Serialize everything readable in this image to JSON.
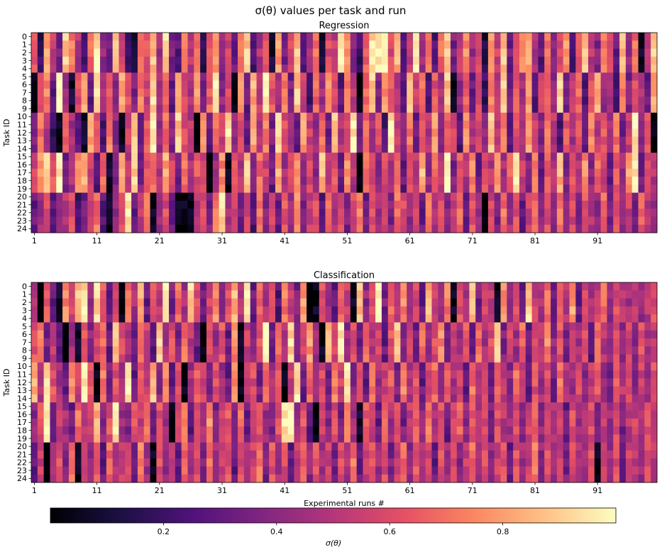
{
  "figure_title": "σ(θ) values per task and run",
  "chart_data": [
    {
      "type": "heatmap",
      "title": "Regression",
      "ylabel": "Task ID",
      "xlabel": "",
      "rows": 25,
      "cols": 100,
      "y_ticks": [
        "0",
        "1",
        "2",
        "3",
        "4",
        "5",
        "6",
        "7",
        "8",
        "9",
        "10",
        "11",
        "12",
        "13",
        "14",
        "15",
        "16",
        "17",
        "18",
        "19",
        "20",
        "21",
        "22",
        "23",
        "24"
      ],
      "x_ticks": [
        "1",
        "11",
        "21",
        "31",
        "41",
        "51",
        "61",
        "71",
        "81",
        "91"
      ],
      "groups": [
        [
          0,
          4
        ],
        [
          5,
          9
        ],
        [
          10,
          14
        ],
        [
          15,
          19
        ],
        [
          20,
          24
        ]
      ],
      "group_run_levels": [
        [
          0.62,
          0.18,
          0.8,
          0.55,
          0.35,
          0.9,
          0.72,
          0.48,
          0.25,
          0.66,
          0.95,
          0.4,
          0.3,
          0.85,
          0.58,
          0.2,
          0.05,
          0.7,
          0.62,
          0.88,
          0.45,
          0.92,
          0.33,
          0.27,
          0.75,
          0.5,
          0.68,
          0.15,
          0.6,
          0.82,
          0.38,
          0.55,
          0.3,
          0.72,
          0.9,
          0.22,
          0.48,
          0.64,
          0.08,
          0.77,
          0.35,
          0.58,
          0.86,
          0.28,
          0.46,
          0.7,
          0.12,
          0.6,
          0.53,
          0.97,
          0.74,
          0.4,
          0.2,
          0.66,
          0.94,
          0.98,
          0.99,
          0.6,
          0.85,
          0.3,
          0.55,
          0.92,
          0.45,
          0.7,
          0.25,
          0.68,
          0.9,
          0.35,
          0.52,
          0.75,
          0.42,
          0.62,
          0.1,
          0.78,
          0.55,
          0.88,
          0.32,
          0.6,
          0.72,
          0.83,
          0.48,
          0.28,
          0.67,
          0.4,
          0.57,
          0.8,
          0.22,
          0.65,
          0.9,
          0.5,
          0.38,
          0.74,
          0.6,
          0.3,
          0.85,
          0.45,
          0.7,
          0.04,
          0.55,
          0.92
        ],
        [
          0.02,
          0.6,
          0.75,
          0.3,
          0.95,
          0.45,
          0.08,
          0.6,
          0.82,
          0.3,
          0.9,
          0.52,
          0.68,
          0.4,
          0.85,
          0.6,
          0.35,
          0.72,
          0.55,
          0.92,
          0.44,
          0.7,
          0.3,
          0.88,
          0.6,
          0.48,
          0.78,
          0.35,
          0.66,
          0.95,
          0.4,
          0.58,
          0.02,
          0.75,
          0.3,
          0.82,
          0.5,
          0.98,
          0.62,
          0.45,
          0.7,
          0.33,
          0.88,
          0.55,
          0.2,
          0.68,
          0.42,
          0.8,
          0.58,
          0.25,
          0.72,
          0.5,
          0.01,
          0.65,
          0.9,
          0.35,
          0.78,
          0.6,
          0.48,
          0.3,
          0.84,
          0.55,
          0.7,
          0.25,
          0.62,
          0.45,
          0.88,
          0.05,
          0.4,
          0.66,
          0.3,
          0.58,
          0.2,
          0.75,
          0.5,
          0.92,
          0.35,
          0.62,
          0.45,
          0.8,
          0.28,
          0.55,
          0.7,
          0.4,
          0.95,
          0.3,
          0.52,
          0.68,
          0.25,
          0.6,
          0.85,
          0.4,
          0.5,
          0.2,
          0.72,
          0.35,
          0.6,
          0.45,
          0.3,
          0.8
        ],
        [
          0.35,
          0.7,
          0.5,
          0.2,
          0.02,
          0.62,
          0.45,
          0.3,
          0.05,
          0.8,
          0.6,
          0.25,
          0.72,
          0.4,
          0.03,
          0.55,
          0.85,
          0.3,
          0.62,
          0.98,
          0.45,
          0.7,
          0.35,
          0.88,
          0.6,
          0.5,
          0.02,
          0.75,
          0.3,
          0.68,
          0.55,
          0.95,
          0.42,
          0.62,
          0.3,
          0.82,
          0.5,
          0.72,
          0.35,
          0.9,
          0.6,
          0.45,
          0.25,
          0.78,
          0.55,
          0.4,
          0.68,
          0.3,
          0.85,
          0.5,
          0.62,
          0.96,
          0.35,
          0.7,
          0.45,
          0.6,
          0.25,
          0.92,
          0.55,
          0.4,
          0.72,
          0.3,
          0.62,
          0.48,
          0.8,
          0.35,
          0.68,
          0.55,
          0.25,
          0.75,
          0.45,
          0.6,
          0.38,
          0.88,
          0.5,
          0.7,
          0.3,
          0.62,
          0.45,
          0.8,
          0.55,
          0.35,
          0.7,
          0.5,
          0.25,
          0.65,
          0.45,
          0.6,
          0.3,
          0.75,
          0.5,
          0.62,
          0.42,
          0.7,
          0.35,
          0.55,
          0.95,
          0.4,
          0.6,
          0.03
        ],
        [
          0.55,
          0.75,
          0.95,
          0.62,
          0.98,
          0.3,
          0.45,
          0.72,
          0.85,
          0.55,
          0.25,
          0.68,
          0.1,
          0.4,
          0.78,
          0.5,
          0.92,
          0.35,
          0.62,
          0.72,
          0.48,
          0.82,
          0.58,
          0.3,
          0.7,
          0.45,
          0.62,
          0.55,
          0.02,
          0.4,
          0.75,
          0.05,
          0.62,
          0.48,
          0.88,
          0.35,
          0.68,
          0.55,
          0.3,
          0.82,
          0.45,
          0.62,
          0.72,
          0.4,
          0.58,
          0.35,
          0.85,
          0.5,
          0.62,
          0.3,
          0.75,
          0.48,
          0.02,
          0.68,
          0.55,
          0.35,
          0.6,
          0.45,
          0.72,
          0.3,
          0.62,
          0.5,
          0.85,
          0.4,
          0.68,
          0.55,
          0.98,
          0.35,
          0.62,
          0.48,
          0.75,
          0.3,
          0.6,
          0.5,
          0.82,
          0.45,
          0.68,
          0.95,
          0.55,
          0.4,
          0.7,
          0.3,
          0.62,
          0.48,
          0.85,
          0.35,
          0.6,
          0.5,
          0.75,
          0.4,
          0.68,
          0.55,
          0.3,
          0.62,
          0.45,
          0.8,
          0.98,
          0.35,
          0.6,
          0.5
        ],
        [
          0.3,
          0.45,
          0.6,
          0.25,
          0.38,
          0.5,
          0.62,
          0.2,
          0.35,
          0.55,
          0.7,
          0.28,
          0.05,
          0.42,
          0.6,
          0.95,
          0.3,
          0.5,
          0.68,
          0.02,
          0.45,
          0.6,
          0.3,
          0.04,
          0.02,
          0.01,
          0.5,
          0.62,
          0.35,
          0.72,
          0.92,
          0.45,
          0.6,
          0.3,
          0.55,
          0.25,
          0.68,
          0.4,
          0.58,
          0.3,
          0.62,
          0.45,
          0.75,
          0.35,
          0.55,
          0.6,
          0.28,
          0.7,
          0.45,
          0.62,
          0.35,
          0.58,
          0.75,
          0.3,
          0.62,
          0.45,
          0.55,
          0.35,
          0.68,
          0.6,
          0.4,
          0.58,
          0.3,
          0.72,
          0.45,
          0.6,
          0.35,
          0.55,
          0.68,
          0.3,
          0.62,
          0.45,
          0.02,
          0.58,
          0.35,
          0.7,
          0.45,
          0.6,
          0.3,
          0.55,
          0.68,
          0.4,
          0.6,
          0.35,
          0.72,
          0.45,
          0.58,
          0.3,
          0.62,
          0.5,
          0.4,
          0.68,
          0.35,
          0.6,
          0.45,
          0.55,
          0.3,
          0.65,
          0.5,
          0.4
        ]
      ]
    },
    {
      "type": "heatmap",
      "title": "Classification",
      "ylabel": "Task ID",
      "xlabel": "Experimental runs #",
      "rows": 25,
      "cols": 100,
      "y_ticks": [
        "0",
        "1",
        "2",
        "3",
        "4",
        "5",
        "6",
        "7",
        "8",
        "9",
        "10",
        "11",
        "12",
        "13",
        "14",
        "15",
        "16",
        "17",
        "18",
        "19",
        "20",
        "21",
        "22",
        "23",
        "24"
      ],
      "x_ticks": [
        "1",
        "11",
        "21",
        "31",
        "41",
        "51",
        "61",
        "71",
        "81",
        "91"
      ],
      "groups": [
        [
          0,
          4
        ],
        [
          5,
          9
        ],
        [
          10,
          14
        ],
        [
          15,
          19
        ],
        [
          20,
          24
        ]
      ],
      "group_run_levels": [
        [
          0.45,
          0.02,
          0.62,
          0.3,
          0.05,
          0.75,
          0.55,
          0.88,
          0.95,
          0.4,
          0.92,
          0.62,
          0.3,
          0.55,
          0.02,
          0.68,
          0.45,
          0.82,
          0.3,
          0.6,
          0.5,
          0.98,
          0.35,
          0.7,
          0.45,
          0.92,
          0.6,
          0.3,
          0.55,
          0.75,
          0.4,
          0.62,
          0.85,
          0.5,
          0.92,
          0.3,
          0.68,
          0.45,
          0.6,
          0.25,
          0.72,
          0.55,
          0.35,
          0.8,
          0.02,
          0.05,
          0.62,
          0.45,
          0.3,
          0.7,
          0.55,
          0.03,
          0.85,
          0.4,
          0.62,
          0.98,
          0.35,
          0.68,
          0.5,
          0.75,
          0.45,
          0.6,
          0.3,
          0.85,
          0.55,
          0.4,
          0.72,
          0.05,
          0.62,
          0.45,
          0.88,
          0.35,
          0.6,
          0.5,
          0.02,
          0.75,
          0.4,
          0.62,
          0.3,
          0.9,
          0.55,
          0.45,
          0.7,
          0.35,
          0.62,
          0.5,
          0.8,
          0.3,
          0.6,
          0.45,
          0.55,
          0.68,
          0.4,
          0.6,
          0.5,
          0.45,
          0.55,
          0.4,
          0.5,
          0.6
        ],
        [
          0.62,
          0.75,
          0.35,
          0.55,
          0.3,
          0.02,
          0.45,
          0.05,
          0.62,
          0.4,
          0.55,
          0.7,
          0.3,
          0.85,
          0.62,
          0.45,
          0.35,
          0.72,
          0.55,
          0.3,
          0.9,
          0.45,
          0.62,
          0.35,
          0.7,
          0.5,
          0.3,
          0.02,
          0.58,
          0.45,
          0.62,
          0.3,
          0.75,
          0.03,
          0.55,
          0.4,
          0.62,
          0.98,
          0.35,
          0.7,
          0.45,
          0.92,
          0.3,
          0.55,
          0.78,
          0.45,
          0.02,
          0.85,
          0.6,
          0.95,
          0.4,
          0.62,
          0.35,
          0.7,
          0.45,
          0.55,
          0.3,
          0.62,
          0.85,
          0.4,
          0.55,
          0.3,
          0.68,
          0.45,
          0.6,
          0.75,
          0.35,
          0.55,
          0.45,
          0.62,
          0.3,
          0.7,
          0.45,
          0.6,
          0.92,
          0.35,
          0.55,
          0.45,
          0.68,
          0.3,
          0.6,
          0.5,
          0.75,
          0.4,
          0.62,
          0.35,
          0.55,
          0.45,
          0.6,
          0.3,
          0.7,
          0.5,
          0.45,
          0.62,
          0.4,
          0.55,
          0.35,
          0.6,
          0.45,
          0.5
        ],
        [
          0.85,
          0.5,
          0.92,
          0.62,
          0.45,
          0.3,
          0.75,
          0.55,
          0.95,
          0.6,
          0.02,
          0.7,
          0.35,
          0.62,
          0.45,
          0.98,
          0.3,
          0.6,
          0.55,
          0.85,
          0.4,
          0.72,
          0.3,
          0.6,
          0.02,
          0.45,
          0.68,
          0.55,
          0.35,
          0.62,
          0.45,
          0.3,
          0.75,
          0.02,
          0.55,
          0.6,
          0.35,
          0.7,
          0.45,
          0.62,
          0.03,
          0.55,
          0.95,
          0.3,
          0.68,
          0.45,
          0.6,
          0.35,
          0.72,
          0.55,
          0.98,
          0.4,
          0.62,
          0.3,
          0.7,
          0.45,
          0.55,
          0.62,
          0.35,
          0.75,
          0.45,
          0.6,
          0.3,
          0.55,
          0.68,
          0.4,
          0.62,
          0.45,
          0.55,
          0.3,
          0.7,
          0.45,
          0.6,
          0.35,
          0.62,
          0.5,
          0.4,
          0.68,
          0.55,
          0.3,
          0.62,
          0.45,
          0.6,
          0.35,
          0.7,
          0.5,
          0.45,
          0.6,
          0.4,
          0.55,
          0.62,
          0.45,
          0.3,
          0.68,
          0.5,
          0.6,
          0.4,
          0.55,
          0.45,
          0.6
        ],
        [
          0.4,
          0.62,
          0.98,
          0.35,
          0.55,
          0.45,
          0.3,
          0.7,
          0.5,
          0.6,
          0.85,
          0.4,
          0.62,
          0.95,
          0.45,
          0.35,
          0.6,
          0.55,
          0.72,
          0.3,
          0.62,
          0.45,
          0.02,
          0.55,
          0.68,
          0.3,
          0.6,
          0.45,
          0.75,
          0.35,
          0.55,
          0.62,
          0.4,
          0.7,
          0.3,
          0.55,
          0.62,
          0.45,
          0.35,
          0.6,
          0.95,
          0.98,
          0.45,
          0.62,
          0.3,
          0.02,
          0.55,
          0.4,
          0.6,
          0.35,
          0.7,
          0.45,
          0.05,
          0.62,
          0.55,
          0.3,
          0.68,
          0.45,
          0.6,
          0.35,
          0.55,
          0.62,
          0.4,
          0.7,
          0.45,
          0.6,
          0.3,
          0.55,
          0.65,
          0.4,
          0.6,
          0.45,
          0.55,
          0.35,
          0.62,
          0.5,
          0.45,
          0.6,
          0.35,
          0.55,
          0.68,
          0.4,
          0.6,
          0.45,
          0.55,
          0.3,
          0.62,
          0.45,
          0.5,
          0.6,
          0.4,
          0.55,
          0.45,
          0.6,
          0.35,
          0.5,
          0.55,
          0.45,
          0.6,
          0.5
        ],
        [
          0.3,
          0.55,
          0.02,
          0.45,
          0.62,
          0.35,
          0.7,
          0.02,
          0.55,
          0.4,
          0.62,
          0.3,
          0.68,
          0.45,
          0.55,
          0.6,
          0.35,
          0.72,
          0.45,
          0.02,
          0.62,
          0.4,
          0.55,
          0.3,
          0.68,
          0.45,
          0.6,
          0.35,
          0.7,
          0.45,
          0.55,
          0.62,
          0.3,
          0.6,
          0.45,
          0.55,
          0.7,
          0.35,
          0.62,
          0.45,
          0.6,
          0.3,
          0.55,
          0.68,
          0.4,
          0.62,
          0.45,
          0.55,
          0.35,
          0.6,
          0.45,
          0.7,
          0.3,
          0.55,
          0.62,
          0.45,
          0.6,
          0.35,
          0.55,
          0.68,
          0.4,
          0.62,
          0.45,
          0.55,
          0.3,
          0.6,
          0.45,
          0.62,
          0.35,
          0.55,
          0.68,
          0.45,
          0.6,
          0.4,
          0.55,
          0.62,
          0.3,
          0.6,
          0.45,
          0.55,
          0.7,
          0.4,
          0.62,
          0.45,
          0.55,
          0.35,
          0.6,
          0.5,
          0.45,
          0.62,
          0.02,
          0.55,
          0.45,
          0.6,
          0.35,
          0.55,
          0.5,
          0.45,
          0.6,
          0.5
        ]
      ]
    }
  ],
  "colorbar": {
    "colormap": "magma",
    "label": "σ(θ)",
    "ticks": [
      "0.2",
      "0.4",
      "0.6",
      "0.8"
    ],
    "tick_values": [
      0.2,
      0.4,
      0.6,
      0.8
    ],
    "range": [
      0.0,
      1.0
    ]
  },
  "magma_stops": [
    "#000004",
    "#1c1044",
    "#4f127b",
    "#812581",
    "#b5367a",
    "#e55064",
    "#fb8761",
    "#fec287",
    "#fcfdbf"
  ]
}
